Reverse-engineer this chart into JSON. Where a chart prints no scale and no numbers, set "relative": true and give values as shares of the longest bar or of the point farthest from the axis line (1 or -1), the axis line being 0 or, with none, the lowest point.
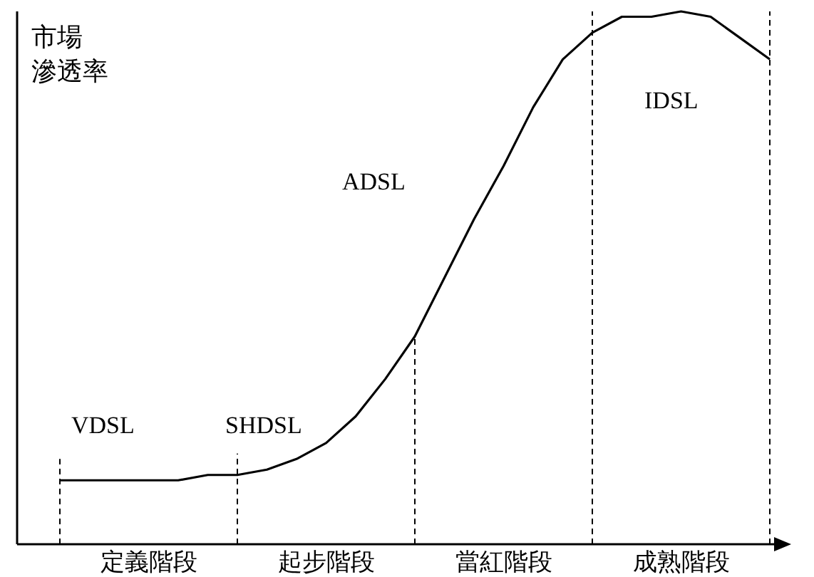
{
  "chart_data": {
    "type": "line",
    "relative": true,
    "ylabel": "市場滲透率",
    "color": "#000000",
    "line_style": "solid",
    "categories": [
      null,
      null,
      null,
      "定義階段",
      null,
      null,
      null,
      null,
      null,
      "起步階段",
      null,
      null,
      null,
      null,
      null,
      "當紅階段",
      null,
      null,
      null,
      null,
      null,
      "成熟階段",
      null,
      null,
      null
    ],
    "values": [
      0.12,
      0.12,
      0.12,
      0.12,
      0.12,
      0.13,
      0.13,
      0.14,
      0.16,
      0.19,
      0.24,
      0.31,
      0.39,
      0.5,
      0.61,
      0.71,
      0.82,
      0.91,
      0.96,
      0.99,
      0.99,
      1,
      0.99,
      0.95,
      0.91
    ],
    "annotations": [
      "VDSL",
      "SHDSL",
      "ADSL",
      "IDSL"
    ]
  }
}
